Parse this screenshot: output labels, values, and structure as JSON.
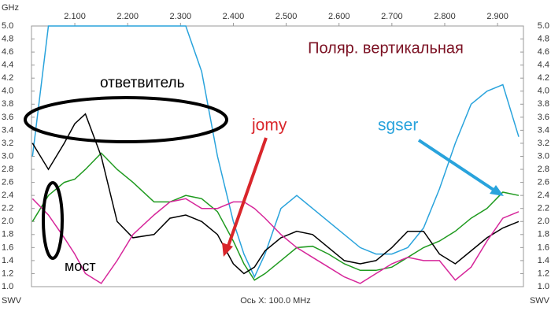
{
  "chart_data": {
    "type": "line",
    "title": "Поляр. вертикальная",
    "x_axis_label": "Ось X: 100.0 MHz",
    "x_unit": "GHz",
    "y_axis_label": "SWV",
    "annotations": [
      "ответвитель",
      "мост",
      "jomy"
    ],
    "xlim": [
      2.018,
      2.949
    ],
    "ylim": [
      1.0,
      5.0
    ],
    "xticks": [
      {
        "value": 2.1,
        "label": "2.100"
      },
      {
        "value": 2.2,
        "label": "2.200"
      },
      {
        "value": 2.3,
        "label": "2.300"
      },
      {
        "value": 2.4,
        "label": "2.400"
      },
      {
        "value": 2.5,
        "label": "2.500"
      },
      {
        "value": 2.6,
        "label": "2.600"
      },
      {
        "value": 2.7,
        "label": "2.700"
      },
      {
        "value": 2.8,
        "label": "2.800"
      },
      {
        "value": 2.9,
        "label": "2.900"
      }
    ],
    "yticks": [
      {
        "value": 1.0,
        "label": "1.0"
      },
      1.2,
      1.4,
      1.6,
      1.8,
      {
        "value": 2.0,
        "label": "2.0"
      },
      2.2,
      2.4,
      2.6,
      2.8,
      {
        "value": 3.0,
        "label": "3.0"
      },
      3.2,
      3.4,
      3.6,
      3.8,
      {
        "value": 4.0,
        "label": "4.0"
      },
      4.2,
      4.4,
      4.6,
      4.8,
      {
        "value": 5.0,
        "label": "5.0"
      }
    ],
    "x": [
      2.02,
      2.05,
      2.08,
      2.1,
      2.12,
      2.15,
      2.18,
      2.21,
      2.25,
      2.28,
      2.31,
      2.34,
      2.37,
      2.4,
      2.42,
      2.44,
      2.46,
      2.49,
      2.52,
      2.55,
      2.58,
      2.61,
      2.64,
      2.67,
      2.7,
      2.73,
      2.76,
      2.79,
      2.82,
      2.85,
      2.88,
      2.91,
      2.94
    ],
    "series": [
      {
        "name": "sgser",
        "color": "#29a3dc",
        "values": [
          3.0,
          5.0,
          5.0,
          5.0,
          5.0,
          5.0,
          5.0,
          5.0,
          5.0,
          5.0,
          5.0,
          4.3,
          3.0,
          2.0,
          1.5,
          1.15,
          1.5,
          2.2,
          2.4,
          2.2,
          2.0,
          1.8,
          1.6,
          1.5,
          1.5,
          1.6,
          1.9,
          2.5,
          3.2,
          3.8,
          4.0,
          4.1,
          3.3
        ]
      },
      {
        "color": "#1f9a1f",
        "values": [
          2.0,
          2.4,
          2.6,
          2.65,
          2.8,
          3.05,
          2.8,
          2.6,
          2.3,
          2.3,
          2.4,
          2.35,
          2.15,
          1.7,
          1.35,
          1.1,
          1.2,
          1.4,
          1.6,
          1.62,
          1.5,
          1.35,
          1.25,
          1.25,
          1.3,
          1.45,
          1.6,
          1.7,
          1.85,
          2.05,
          2.2,
          2.45,
          2.4
        ]
      },
      {
        "color": "#000000",
        "values": [
          3.2,
          2.8,
          3.2,
          3.5,
          3.65,
          3.0,
          2.0,
          1.75,
          1.8,
          2.05,
          2.1,
          2.0,
          1.8,
          1.35,
          1.2,
          1.3,
          1.55,
          1.75,
          1.85,
          1.8,
          1.6,
          1.4,
          1.35,
          1.4,
          1.6,
          1.85,
          1.85,
          1.5,
          1.35,
          1.55,
          1.75,
          1.9,
          2.0
        ]
      },
      {
        "color": "#d6269a",
        "values": [
          2.35,
          2.1,
          1.75,
          1.5,
          1.2,
          1.05,
          1.4,
          1.8,
          2.1,
          2.3,
          2.35,
          2.2,
          2.2,
          2.3,
          2.3,
          2.2,
          2.05,
          1.8,
          1.6,
          1.45,
          1.3,
          1.15,
          1.05,
          1.2,
          1.35,
          1.45,
          1.4,
          1.4,
          1.1,
          1.3,
          1.7,
          2.05,
          2.15
        ]
      }
    ]
  }
}
